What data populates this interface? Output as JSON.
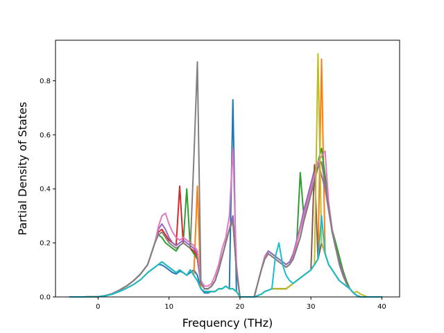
{
  "chart_data": {
    "type": "line",
    "title": "",
    "xlabel": "Frequency (THz)",
    "ylabel": "Partial Density of States",
    "xlim": [
      -6,
      42.5
    ],
    "ylim": [
      0,
      0.95
    ],
    "xticks": [
      0,
      10,
      20,
      30,
      40
    ],
    "yticks": [
      0.0,
      0.2,
      0.4,
      0.6,
      0.8
    ],
    "ytick_labels": [
      "0.0",
      "0.2",
      "0.4",
      "0.6",
      "0.8"
    ],
    "grid": false,
    "legend": "none",
    "colors": [
      "#1f77b4",
      "#ff7f0e",
      "#2ca02c",
      "#d62728",
      "#9467bd",
      "#8c564b",
      "#e377c2",
      "#7f7f7f",
      "#bcbd22",
      "#17becf"
    ],
    "x": [
      -4,
      -2,
      0,
      1,
      2,
      3,
      4,
      5,
      6,
      7,
      7.5,
      8,
      8.5,
      9,
      9.5,
      10,
      10.5,
      11,
      11.5,
      12,
      12.5,
      13,
      13.5,
      14,
      14.5,
      15,
      15.5,
      16,
      16.5,
      17,
      17.5,
      18,
      18.5,
      19,
      19.5,
      20,
      21,
      22,
      23,
      23.5,
      24,
      24.5,
      25,
      25.5,
      26,
      26.5,
      27,
      27.5,
      28,
      28.5,
      29,
      29.5,
      30,
      30.5,
      31,
      31.5,
      32,
      32.5,
      33,
      33.5,
      34,
      34.5,
      35,
      35.5,
      36,
      36.5,
      37,
      38,
      40
    ],
    "series": [
      {
        "values": [
          0,
          0,
          0.001,
          0.004,
          0.01,
          0.02,
          0.032,
          0.046,
          0.064,
          0.09,
          0.1,
          0.11,
          0.12,
          0.118,
          0.11,
          0.1,
          0.09,
          0.085,
          0.095,
          0.09,
          0.08,
          0.09,
          0.1,
          0.08,
          0.03,
          0.015,
          0.015,
          0.02,
          0.02,
          0.03,
          0.03,
          0.04,
          0.03,
          0.73,
          0.02,
          0,
          0,
          0,
          0.01,
          0.02,
          0.025,
          0.03,
          0.03,
          0.03,
          0.03,
          0.03,
          0.04,
          0.05,
          0.06,
          0.07,
          0.08,
          0.09,
          0.1,
          0.12,
          0.14,
          0.2,
          0.16,
          0.12,
          0.1,
          0.08,
          0.06,
          0.05,
          0.04,
          0.03,
          0.015,
          0.005,
          0,
          0,
          0
        ]
      },
      {
        "values": [
          0,
          0,
          0.001,
          0.004,
          0.01,
          0.02,
          0.032,
          0.046,
          0.064,
          0.09,
          0.1,
          0.11,
          0.12,
          0.13,
          0.12,
          0.11,
          0.1,
          0.09,
          0.1,
          0.09,
          0.08,
          0.1,
          0.08,
          0.41,
          0.03,
          0.02,
          0.02,
          0.02,
          0.02,
          0.03,
          0.03,
          0.04,
          0.03,
          0.03,
          0.02,
          0,
          0,
          0,
          0.01,
          0.02,
          0.025,
          0.03,
          0.03,
          0.03,
          0.03,
          0.03,
          0.04,
          0.05,
          0.06,
          0.07,
          0.08,
          0.09,
          0.1,
          0.12,
          0.14,
          0.88,
          0.16,
          0.12,
          0.1,
          0.08,
          0.06,
          0.05,
          0.04,
          0.03,
          0.015,
          0.005,
          0,
          0,
          0
        ]
      },
      {
        "values": [
          0,
          0,
          0.001,
          0.005,
          0.012,
          0.025,
          0.04,
          0.06,
          0.085,
          0.12,
          0.16,
          0.2,
          0.23,
          0.22,
          0.2,
          0.19,
          0.18,
          0.17,
          0.19,
          0.2,
          0.4,
          0.18,
          0.16,
          0.14,
          0.05,
          0.03,
          0.03,
          0.04,
          0.06,
          0.1,
          0.15,
          0.2,
          0.25,
          0.3,
          0.1,
          0,
          0,
          0,
          0.1,
          0.15,
          0.17,
          0.16,
          0.15,
          0.14,
          0.13,
          0.12,
          0.13,
          0.15,
          0.2,
          0.46,
          0.3,
          0.35,
          0.4,
          0.45,
          0.5,
          0.55,
          0.45,
          0.35,
          0.25,
          0.2,
          0.15,
          0.1,
          0.06,
          0.03,
          0.015,
          0.005,
          0,
          0,
          0
        ]
      },
      {
        "values": [
          0,
          0,
          0.001,
          0.005,
          0.012,
          0.025,
          0.04,
          0.06,
          0.085,
          0.12,
          0.16,
          0.2,
          0.24,
          0.25,
          0.23,
          0.21,
          0.2,
          0.19,
          0.41,
          0.2,
          0.19,
          0.18,
          0.17,
          0.15,
          0.05,
          0.03,
          0.03,
          0.04,
          0.06,
          0.1,
          0.15,
          0.2,
          0.25,
          0.28,
          0.1,
          0,
          0,
          0,
          0.1,
          0.14,
          0.16,
          0.15,
          0.14,
          0.13,
          0.12,
          0.11,
          0.12,
          0.14,
          0.18,
          0.22,
          0.28,
          0.33,
          0.38,
          0.43,
          0.48,
          0.5,
          0.42,
          0.33,
          0.24,
          0.18,
          0.13,
          0.09,
          0.05,
          0.03,
          0.015,
          0.005,
          0,
          0,
          0
        ]
      },
      {
        "values": [
          0,
          0,
          0.001,
          0.005,
          0.012,
          0.025,
          0.04,
          0.06,
          0.085,
          0.12,
          0.16,
          0.2,
          0.25,
          0.27,
          0.25,
          0.22,
          0.2,
          0.19,
          0.2,
          0.21,
          0.2,
          0.19,
          0.18,
          0.16,
          0.05,
          0.03,
          0.03,
          0.04,
          0.06,
          0.1,
          0.15,
          0.2,
          0.25,
          0.3,
          0.1,
          0,
          0,
          0,
          0.1,
          0.15,
          0.17,
          0.16,
          0.15,
          0.14,
          0.13,
          0.12,
          0.13,
          0.16,
          0.21,
          0.26,
          0.32,
          0.37,
          0.42,
          0.47,
          0.5,
          0.45,
          0.4,
          0.32,
          0.24,
          0.18,
          0.12,
          0.08,
          0.05,
          0.03,
          0.015,
          0.005,
          0,
          0,
          0
        ]
      },
      {
        "values": [
          0,
          0,
          0.001,
          0.004,
          0.01,
          0.02,
          0.032,
          0.046,
          0.064,
          0.09,
          0.1,
          0.11,
          0.12,
          0.13,
          0.12,
          0.11,
          0.1,
          0.09,
          0.1,
          0.09,
          0.08,
          0.1,
          0.08,
          0.06,
          0.03,
          0.02,
          0.02,
          0.02,
          0.02,
          0.03,
          0.03,
          0.04,
          0.03,
          0.03,
          0.02,
          0,
          0,
          0,
          0.01,
          0.02,
          0.025,
          0.03,
          0.03,
          0.03,
          0.03,
          0.03,
          0.04,
          0.05,
          0.06,
          0.07,
          0.08,
          0.09,
          0.1,
          0.49,
          0.14,
          0.2,
          0.16,
          0.12,
          0.1,
          0.08,
          0.06,
          0.05,
          0.04,
          0.03,
          0.015,
          0.005,
          0,
          0,
          0
        ]
      },
      {
        "values": [
          0,
          0,
          0.001,
          0.005,
          0.012,
          0.025,
          0.04,
          0.06,
          0.085,
          0.12,
          0.16,
          0.2,
          0.26,
          0.3,
          0.31,
          0.27,
          0.24,
          0.22,
          0.21,
          0.22,
          0.21,
          0.2,
          0.19,
          0.17,
          0.06,
          0.04,
          0.04,
          0.05,
          0.08,
          0.12,
          0.18,
          0.22,
          0.3,
          0.55,
          0.12,
          0,
          0,
          0,
          0.1,
          0.15,
          0.16,
          0.15,
          0.14,
          0.13,
          0.12,
          0.11,
          0.12,
          0.15,
          0.2,
          0.25,
          0.3,
          0.35,
          0.4,
          0.45,
          0.5,
          0.52,
          0.54,
          0.35,
          0.25,
          0.18,
          0.13,
          0.09,
          0.05,
          0.03,
          0.015,
          0.005,
          0,
          0,
          0
        ]
      },
      {
        "values": [
          0,
          0,
          0.001,
          0.005,
          0.012,
          0.025,
          0.04,
          0.06,
          0.085,
          0.12,
          0.16,
          0.2,
          0.23,
          0.24,
          0.22,
          0.2,
          0.19,
          0.18,
          0.19,
          0.2,
          0.19,
          0.18,
          0.51,
          0.87,
          0.05,
          0.03,
          0.03,
          0.04,
          0.06,
          0.1,
          0.15,
          0.2,
          0.25,
          0.28,
          0.1,
          0,
          0,
          0,
          0.1,
          0.14,
          0.16,
          0.15,
          0.14,
          0.13,
          0.12,
          0.11,
          0.12,
          0.14,
          0.18,
          0.22,
          0.28,
          0.33,
          0.38,
          0.43,
          0.48,
          0.5,
          0.42,
          0.33,
          0.24,
          0.18,
          0.13,
          0.09,
          0.05,
          0.03,
          0.015,
          0.005,
          0,
          0,
          0
        ]
      },
      {
        "values": [
          0,
          0,
          0.001,
          0.004,
          0.01,
          0.02,
          0.032,
          0.046,
          0.064,
          0.09,
          0.1,
          0.11,
          0.12,
          0.13,
          0.12,
          0.11,
          0.1,
          0.09,
          0.1,
          0.09,
          0.08,
          0.1,
          0.08,
          0.06,
          0.03,
          0.02,
          0.02,
          0.02,
          0.02,
          0.03,
          0.03,
          0.04,
          0.03,
          0.03,
          0.02,
          0,
          0,
          0,
          0.01,
          0.02,
          0.025,
          0.03,
          0.03,
          0.03,
          0.03,
          0.03,
          0.04,
          0.05,
          0.06,
          0.07,
          0.08,
          0.09,
          0.1,
          0.12,
          0.9,
          0.2,
          0.16,
          0.12,
          0.1,
          0.08,
          0.06,
          0.05,
          0.04,
          0.03,
          0.015,
          0.02,
          0.01,
          0,
          0
        ]
      },
      {
        "values": [
          0,
          0,
          0.001,
          0.004,
          0.01,
          0.02,
          0.032,
          0.046,
          0.064,
          0.09,
          0.1,
          0.11,
          0.12,
          0.13,
          0.12,
          0.11,
          0.1,
          0.09,
          0.1,
          0.09,
          0.08,
          0.1,
          0.08,
          0.06,
          0.03,
          0.02,
          0.02,
          0.02,
          0.02,
          0.03,
          0.03,
          0.04,
          0.03,
          0.03,
          0.02,
          0,
          0,
          0,
          0.01,
          0.02,
          0.025,
          0.03,
          0.15,
          0.2,
          0.12,
          0.08,
          0.06,
          0.05,
          0.06,
          0.07,
          0.08,
          0.09,
          0.1,
          0.12,
          0.14,
          0.3,
          0.16,
          0.12,
          0.1,
          0.08,
          0.06,
          0.05,
          0.04,
          0.03,
          0.015,
          0.005,
          0,
          0,
          0
        ]
      }
    ]
  }
}
